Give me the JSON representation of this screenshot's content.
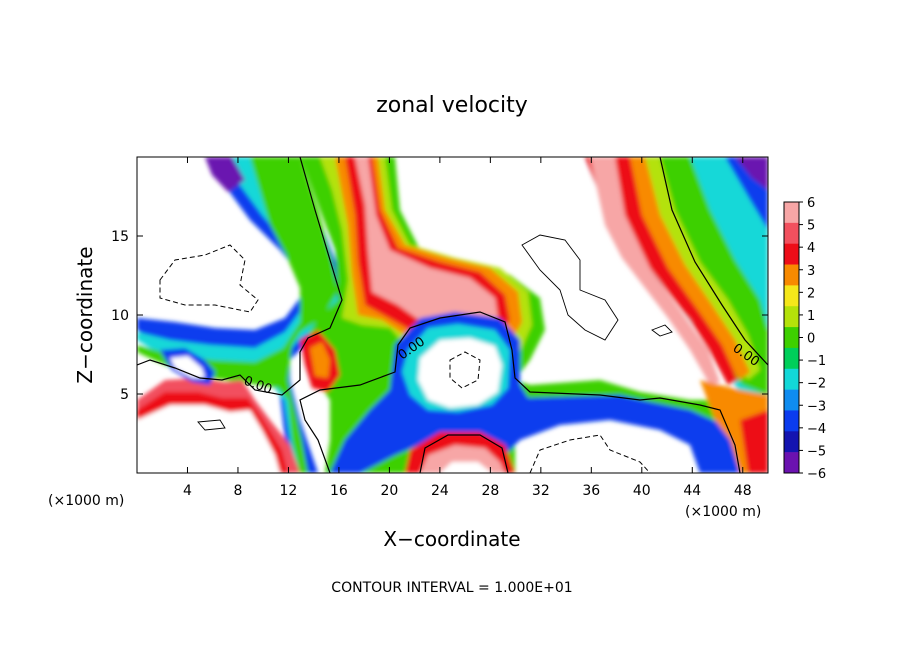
{
  "chart_data": {
    "type": "heatmap",
    "title": "zonal velocity",
    "xlabel": "X−coordinate",
    "ylabel": "Z−coordinate",
    "x_unit_left": "(×1000 m)",
    "x_unit_right": "(×1000 m)",
    "footer": "CONTOUR INTERVAL = 1.000E+01",
    "xlim": [
      0,
      50
    ],
    "ylim": [
      0,
      20
    ],
    "x_ticks": [
      4,
      8,
      12,
      16,
      20,
      24,
      28,
      32,
      36,
      40,
      44,
      48
    ],
    "y_ticks": [
      5,
      10,
      15
    ],
    "colorbar": {
      "min": -6,
      "max": 6,
      "tick_labels": [
        "6",
        "5",
        "4",
        "3",
        "2",
        "1",
        "0",
        "−1",
        "−2",
        "−3",
        "−4",
        "−5",
        "−6"
      ],
      "colors": [
        "#f7a6a6",
        "#f2505e",
        "#ed0d18",
        "#f88a00",
        "#f5e71a",
        "#b4e20a",
        "#3ed000",
        "#00cf5a",
        "#12d8d8",
        "#0f8cf0",
        "#0b3cee",
        "#1414b0",
        "#6b12b0"
      ]
    },
    "contour_labels": [
      "0.00",
      "0.00",
      "0.00"
    ]
  }
}
